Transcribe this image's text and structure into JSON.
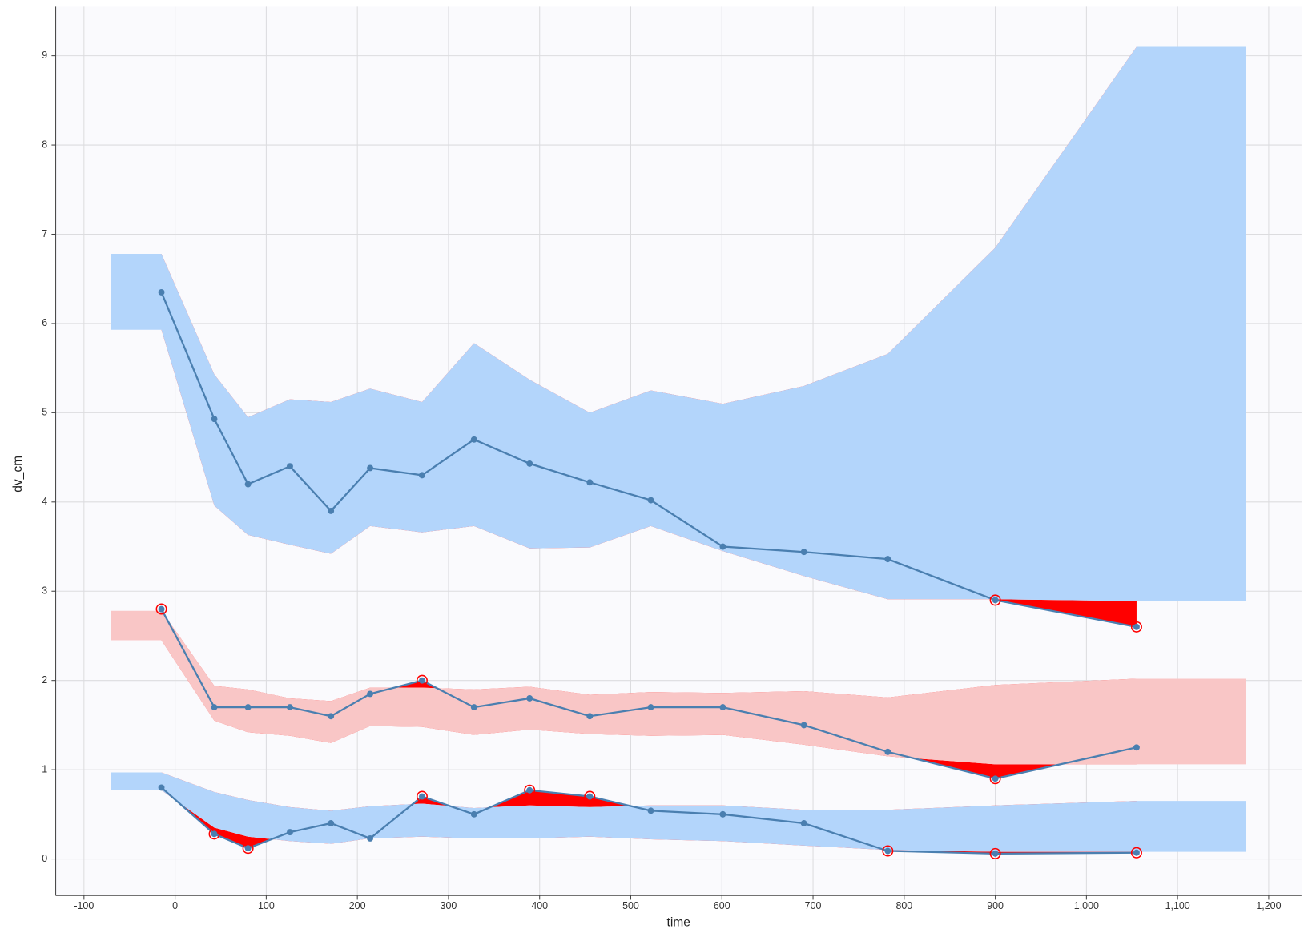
{
  "chart_data": {
    "type": "vpc",
    "xlabel": "time",
    "ylabel": "dv_cm",
    "xlim": [
      -131,
      1236
    ],
    "ylim": [
      -0.41,
      9.55
    ],
    "xticks": [
      -100,
      0,
      100,
      200,
      300,
      400,
      500,
      600,
      700,
      800,
      900,
      {
        "value": 1000,
        "label": "1,000"
      },
      {
        "value": 1100,
        "label": "1,100"
      },
      {
        "value": 1200,
        "label": "1,200"
      }
    ],
    "yticks": [
      0,
      1,
      2,
      3,
      4,
      5,
      6,
      7,
      8,
      9
    ],
    "grid": true,
    "line_color": "#4a7fb0",
    "outlier_color": "#ff0000",
    "x": [
      -15,
      43,
      80,
      126,
      171,
      214,
      271,
      328,
      389,
      455,
      522,
      601,
      690,
      782,
      900,
      1055
    ],
    "series": [
      {
        "values": [
          6.35,
          4.93,
          4.2,
          4.4,
          3.9,
          4.38,
          4.3,
          4.7,
          4.43,
          4.22,
          4.02,
          3.5,
          3.44,
          3.36,
          2.9,
          2.6
        ]
      },
      {
        "values": [
          2.8,
          1.7,
          1.7,
          1.7,
          1.6,
          1.85,
          2.0,
          1.7,
          1.8,
          1.6,
          1.7,
          1.7,
          1.5,
          1.2,
          0.9,
          1.25
        ]
      },
      {
        "values": [
          0.8,
          0.28,
          0.12,
          0.3,
          0.4,
          0.23,
          0.7,
          0.5,
          0.77,
          0.7,
          0.54,
          0.5,
          0.4,
          0.09,
          0.06,
          0.07
        ]
      }
    ],
    "band_x": [
      -70,
      -15,
      43,
      80,
      126,
      171,
      214,
      271,
      328,
      389,
      455,
      522,
      601,
      690,
      782,
      900,
      1055,
      1175
    ],
    "bands": [
      {
        "color": "#b3d5fb",
        "upper": [
          6.78,
          6.78,
          5.43,
          4.95,
          5.15,
          5.12,
          5.27,
          5.12,
          5.78,
          5.37,
          5.0,
          5.25,
          5.1,
          5.3,
          5.66,
          6.85,
          9.1,
          9.1
        ],
        "lower": [
          5.93,
          5.93,
          3.96,
          3.63,
          3.52,
          3.42,
          3.73,
          3.66,
          3.73,
          3.48,
          3.49,
          3.73,
          3.45,
          3.17,
          2.91,
          2.91,
          2.89,
          2.89
        ]
      },
      {
        "color": "#f9c6c6",
        "upper": [
          2.78,
          2.78,
          1.94,
          1.9,
          1.8,
          1.77,
          1.92,
          1.92,
          1.9,
          1.93,
          1.84,
          1.87,
          1.86,
          1.88,
          1.81,
          1.95,
          2.02,
          2.02
        ],
        "lower": [
          2.45,
          2.45,
          1.55,
          1.42,
          1.38,
          1.3,
          1.49,
          1.48,
          1.39,
          1.45,
          1.4,
          1.38,
          1.39,
          1.28,
          1.15,
          1.06,
          1.06,
          1.06
        ]
      },
      {
        "color": "#b3d5fb",
        "upper": [
          0.97,
          0.97,
          0.75,
          0.66,
          0.58,
          0.54,
          0.59,
          0.62,
          0.57,
          0.6,
          0.58,
          0.6,
          0.6,
          0.55,
          0.55,
          0.6,
          0.65,
          0.65
        ],
        "lower": [
          0.77,
          0.77,
          0.35,
          0.25,
          0.2,
          0.17,
          0.23,
          0.25,
          0.23,
          0.23,
          0.25,
          0.22,
          0.2,
          0.15,
          0.1,
          0.08,
          0.08,
          0.08
        ]
      }
    ]
  }
}
